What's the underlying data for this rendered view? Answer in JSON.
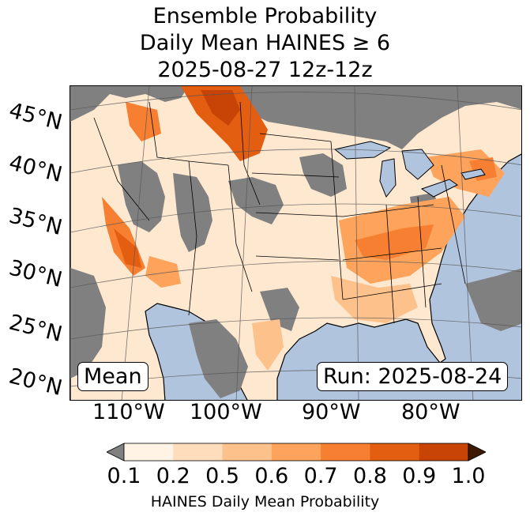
{
  "title": {
    "line1": "Ensemble Probability",
    "line2": "Daily Mean HAINES ≥ 6",
    "line3": "2025-08-27 12z-12z"
  },
  "latitude_labels": [
    "45°N",
    "40°N",
    "35°N",
    "30°N",
    "25°N",
    "20°N"
  ],
  "longitude_labels": [
    "110°W",
    "100°W",
    "90°W",
    "80°W"
  ],
  "boxes": {
    "mean": "Mean",
    "run": "Run: 2025-08-24"
  },
  "colorbar": {
    "ticks": [
      "0.1",
      "0.2",
      "0.5",
      "0.6",
      "0.7",
      "0.8",
      "0.9",
      "1.0"
    ],
    "label": "HAINES Daily Mean Probability",
    "under_color": "#808080",
    "over_color": "#3d1a05",
    "colors": [
      "#fff3e6",
      "#fdddbb",
      "#fdc28c",
      "#fda35c",
      "#f67f31",
      "#e45e11",
      "#c74406"
    ]
  },
  "map_colors": {
    "ocean": "#b0c4de",
    "land_below": "#808080",
    "country_border": "#000000",
    "lakes": "#b0c4de"
  }
}
